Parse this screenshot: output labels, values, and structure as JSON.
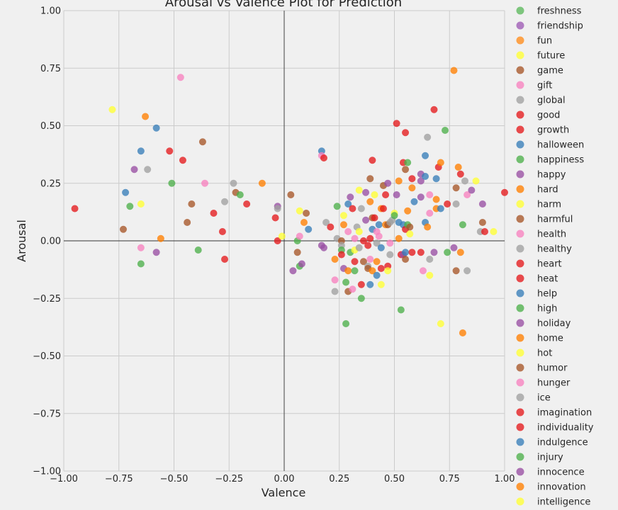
{
  "chart_data": {
    "type": "scatter",
    "title": "Arousal vs Valence Plot for Prediction",
    "xlabel": "Valence",
    "ylabel": "Arousal",
    "xlim": [
      -1.0,
      1.0
    ],
    "ylim": [
      -1.0,
      1.0
    ],
    "xticks": [
      "−1.00",
      "−0.75",
      "−0.50",
      "−0.25",
      "0.00",
      "0.25",
      "0.50",
      "0.75",
      "1.00"
    ],
    "yticks": [
      "−1.00",
      "−0.75",
      "−0.50",
      "−0.25",
      "0.00",
      "0.25",
      "0.50",
      "0.75",
      "1.00"
    ],
    "grid": true,
    "zero_lines": true,
    "legend_position": "outside-right",
    "legend": [
      {
        "name": "freshness",
        "color": "#5cb85c"
      },
      {
        "name": "friendship",
        "color": "#9e5bb5"
      },
      {
        "name": "fun",
        "color": "#ff8c1a"
      },
      {
        "name": "future",
        "color": "#ffff33"
      },
      {
        "name": "game",
        "color": "#a65628"
      },
      {
        "name": "gift",
        "color": "#f781bf"
      },
      {
        "name": "global",
        "color": "#a0a0a0"
      },
      {
        "name": "good",
        "color": "#e41a1c"
      },
      {
        "name": "growth",
        "color": "#e41a1c"
      },
      {
        "name": "halloween",
        "color": "#377eb8"
      },
      {
        "name": "happiness",
        "color": "#4daf4a"
      },
      {
        "name": "happy",
        "color": "#984ea3"
      },
      {
        "name": "hard",
        "color": "#ff7f00"
      },
      {
        "name": "harm",
        "color": "#ffff33"
      },
      {
        "name": "harmful",
        "color": "#a65628"
      },
      {
        "name": "health",
        "color": "#f781bf"
      },
      {
        "name": "healthy",
        "color": "#a0a0a0"
      },
      {
        "name": "heart",
        "color": "#e41a1c"
      },
      {
        "name": "heat",
        "color": "#e41a1c"
      },
      {
        "name": "help",
        "color": "#377eb8"
      },
      {
        "name": "high",
        "color": "#4daf4a"
      },
      {
        "name": "holiday",
        "color": "#984ea3"
      },
      {
        "name": "home",
        "color": "#ff7f00"
      },
      {
        "name": "hot",
        "color": "#ffff33"
      },
      {
        "name": "humor",
        "color": "#a65628"
      },
      {
        "name": "hunger",
        "color": "#f781bf"
      },
      {
        "name": "ice",
        "color": "#a0a0a0"
      },
      {
        "name": "imagination",
        "color": "#e41a1c"
      },
      {
        "name": "individuality",
        "color": "#e41a1c"
      },
      {
        "name": "indulgence",
        "color": "#377eb8"
      },
      {
        "name": "injury",
        "color": "#4daf4a"
      },
      {
        "name": "innocence",
        "color": "#984ea3"
      },
      {
        "name": "innovation",
        "color": "#ff7f00"
      },
      {
        "name": "intelligence",
        "color": "#ffff33"
      }
    ],
    "points": [
      {
        "x": -0.95,
        "y": 0.14,
        "c": "#e41a1c"
      },
      {
        "x": -0.78,
        "y": 0.57,
        "c": "#ffff33"
      },
      {
        "x": -0.73,
        "y": 0.05,
        "c": "#a65628"
      },
      {
        "x": -0.72,
        "y": 0.21,
        "c": "#377eb8"
      },
      {
        "x": -0.7,
        "y": 0.15,
        "c": "#4daf4a"
      },
      {
        "x": -0.68,
        "y": 0.31,
        "c": "#984ea3"
      },
      {
        "x": -0.65,
        "y": 0.39,
        "c": "#377eb8"
      },
      {
        "x": -0.65,
        "y": 0.16,
        "c": "#ffff33"
      },
      {
        "x": -0.65,
        "y": -0.03,
        "c": "#f781bf"
      },
      {
        "x": -0.65,
        "y": -0.1,
        "c": "#4daf4a"
      },
      {
        "x": -0.63,
        "y": 0.54,
        "c": "#ff7f00"
      },
      {
        "x": -0.62,
        "y": 0.31,
        "c": "#a0a0a0"
      },
      {
        "x": -0.58,
        "y": 0.49,
        "c": "#377eb8"
      },
      {
        "x": -0.58,
        "y": -0.05,
        "c": "#984ea3"
      },
      {
        "x": -0.56,
        "y": 0.01,
        "c": "#ff7f00"
      },
      {
        "x": -0.52,
        "y": 0.39,
        "c": "#e41a1c"
      },
      {
        "x": -0.51,
        "y": 0.25,
        "c": "#4daf4a"
      },
      {
        "x": -0.47,
        "y": 0.71,
        "c": "#f781bf"
      },
      {
        "x": -0.46,
        "y": 0.35,
        "c": "#e41a1c"
      },
      {
        "x": -0.44,
        "y": 0.08,
        "c": "#a65628"
      },
      {
        "x": -0.42,
        "y": 0.16,
        "c": "#a65628"
      },
      {
        "x": -0.39,
        "y": -0.04,
        "c": "#4daf4a"
      },
      {
        "x": -0.37,
        "y": 0.43,
        "c": "#a65628"
      },
      {
        "x": -0.36,
        "y": 0.25,
        "c": "#f781bf"
      },
      {
        "x": -0.32,
        "y": 0.12,
        "c": "#e41a1c"
      },
      {
        "x": -0.28,
        "y": 0.04,
        "c": "#e41a1c"
      },
      {
        "x": -0.27,
        "y": 0.17,
        "c": "#a0a0a0"
      },
      {
        "x": -0.27,
        "y": -0.08,
        "c": "#e41a1c"
      },
      {
        "x": -0.23,
        "y": 0.25,
        "c": "#a0a0a0"
      },
      {
        "x": -0.22,
        "y": 0.21,
        "c": "#a65628"
      },
      {
        "x": -0.2,
        "y": 0.2,
        "c": "#4daf4a"
      },
      {
        "x": -0.17,
        "y": 0.16,
        "c": "#e41a1c"
      },
      {
        "x": -0.1,
        "y": 0.25,
        "c": "#ff7f00"
      },
      {
        "x": -0.04,
        "y": 0.1,
        "c": "#e41a1c"
      },
      {
        "x": -0.03,
        "y": 0.0,
        "c": "#e41a1c"
      },
      {
        "x": -0.03,
        "y": 0.15,
        "c": "#984ea3"
      },
      {
        "x": -0.03,
        "y": 0.14,
        "c": "#a0a0a0"
      },
      {
        "x": -0.01,
        "y": 0.02,
        "c": "#ffff33"
      },
      {
        "x": 0.03,
        "y": 0.2,
        "c": "#a65628"
      },
      {
        "x": 0.04,
        "y": -0.13,
        "c": "#984ea3"
      },
      {
        "x": 0.06,
        "y": 0.0,
        "c": "#4daf4a"
      },
      {
        "x": 0.06,
        "y": -0.05,
        "c": "#a65628"
      },
      {
        "x": 0.07,
        "y": 0.13,
        "c": "#ffff33"
      },
      {
        "x": 0.07,
        "y": 0.02,
        "c": "#f781bf"
      },
      {
        "x": 0.07,
        "y": -0.11,
        "c": "#4daf4a"
      },
      {
        "x": 0.08,
        "y": -0.1,
        "c": "#984ea3"
      },
      {
        "x": 0.09,
        "y": 0.08,
        "c": "#ff7f00"
      },
      {
        "x": 0.1,
        "y": 0.12,
        "c": "#a65628"
      },
      {
        "x": 0.11,
        "y": 0.05,
        "c": "#377eb8"
      },
      {
        "x": 0.17,
        "y": 0.39,
        "c": "#377eb8"
      },
      {
        "x": 0.17,
        "y": 0.37,
        "c": "#f781bf"
      },
      {
        "x": 0.18,
        "y": 0.36,
        "c": "#e41a1c"
      },
      {
        "x": 0.17,
        "y": -0.02,
        "c": "#984ea3"
      },
      {
        "x": 0.18,
        "y": -0.03,
        "c": "#984ea3"
      },
      {
        "x": 0.19,
        "y": 0.08,
        "c": "#a0a0a0"
      },
      {
        "x": 0.21,
        "y": 0.06,
        "c": "#e41a1c"
      },
      {
        "x": 0.23,
        "y": -0.22,
        "c": "#a0a0a0"
      },
      {
        "x": 0.23,
        "y": -0.17,
        "c": "#f781bf"
      },
      {
        "x": 0.23,
        "y": -0.08,
        "c": "#ff7f00"
      },
      {
        "x": 0.24,
        "y": 0.15,
        "c": "#4daf4a"
      },
      {
        "x": 0.24,
        "y": 0.01,
        "c": "#a0a0a0"
      },
      {
        "x": 0.26,
        "y": 0.0,
        "c": "#a65628"
      },
      {
        "x": 0.26,
        "y": -0.02,
        "c": "#a0a0a0"
      },
      {
        "x": 0.26,
        "y": -0.04,
        "c": "#4daf4a"
      },
      {
        "x": 0.26,
        "y": -0.06,
        "c": "#e41a1c"
      },
      {
        "x": 0.27,
        "y": -0.12,
        "c": "#984ea3"
      },
      {
        "x": 0.27,
        "y": 0.07,
        "c": "#ff7f00"
      },
      {
        "x": 0.27,
        "y": 0.11,
        "c": "#ffff33"
      },
      {
        "x": 0.28,
        "y": -0.18,
        "c": "#4daf4a"
      },
      {
        "x": 0.28,
        "y": -0.36,
        "c": "#4daf4a"
      },
      {
        "x": 0.29,
        "y": 0.16,
        "c": "#377eb8"
      },
      {
        "x": 0.29,
        "y": 0.04,
        "c": "#f781bf"
      },
      {
        "x": 0.29,
        "y": -0.13,
        "c": "#ff7f00"
      },
      {
        "x": 0.29,
        "y": -0.22,
        "c": "#a65628"
      },
      {
        "x": 0.3,
        "y": 0.19,
        "c": "#984ea3"
      },
      {
        "x": 0.3,
        "y": -0.05,
        "c": "#4daf4a"
      },
      {
        "x": 0.31,
        "y": 0.14,
        "c": "#e41a1c"
      },
      {
        "x": 0.31,
        "y": -0.21,
        "c": "#f781bf"
      },
      {
        "x": 0.32,
        "y": -0.04,
        "c": "#ffff33"
      },
      {
        "x": 0.32,
        "y": -0.09,
        "c": "#e41a1c"
      },
      {
        "x": 0.32,
        "y": -0.13,
        "c": "#4daf4a"
      },
      {
        "x": 0.32,
        "y": 0.01,
        "c": "#f781bf"
      },
      {
        "x": 0.33,
        "y": 0.06,
        "c": "#a0a0a0"
      },
      {
        "x": 0.34,
        "y": -0.03,
        "c": "#a0a0a0"
      },
      {
        "x": 0.34,
        "y": 0.22,
        "c": "#ffff33"
      },
      {
        "x": 0.34,
        "y": 0.04,
        "c": "#ffff33"
      },
      {
        "x": 0.35,
        "y": 0.14,
        "c": "#a0a0a0"
      },
      {
        "x": 0.35,
        "y": -0.19,
        "c": "#e41a1c"
      },
      {
        "x": 0.35,
        "y": -0.25,
        "c": "#4daf4a"
      },
      {
        "x": 0.36,
        "y": 0.0,
        "c": "#e41a1c"
      },
      {
        "x": 0.36,
        "y": -0.09,
        "c": "#a65628"
      },
      {
        "x": 0.37,
        "y": 0.21,
        "c": "#984ea3"
      },
      {
        "x": 0.37,
        "y": 0.09,
        "c": "#984ea3"
      },
      {
        "x": 0.38,
        "y": -0.02,
        "c": "#e41a1c"
      },
      {
        "x": 0.38,
        "y": -0.11,
        "c": "#a0a0a0"
      },
      {
        "x": 0.38,
        "y": -0.12,
        "c": "#a65628"
      },
      {
        "x": 0.39,
        "y": 0.27,
        "c": "#a65628"
      },
      {
        "x": 0.39,
        "y": 0.17,
        "c": "#ff7f00"
      },
      {
        "x": 0.39,
        "y": 0.01,
        "c": "#e41a1c"
      },
      {
        "x": 0.39,
        "y": -0.08,
        "c": "#f781bf"
      },
      {
        "x": 0.39,
        "y": -0.19,
        "c": "#377eb8"
      },
      {
        "x": 0.4,
        "y": 0.35,
        "c": "#e41a1c"
      },
      {
        "x": 0.4,
        "y": 0.1,
        "c": "#a65628"
      },
      {
        "x": 0.4,
        "y": 0.05,
        "c": "#377eb8"
      },
      {
        "x": 0.4,
        "y": -0.13,
        "c": "#ff7f00"
      },
      {
        "x": 0.41,
        "y": 0.2,
        "c": "#ffff33"
      },
      {
        "x": 0.41,
        "y": 0.1,
        "c": "#e41a1c"
      },
      {
        "x": 0.42,
        "y": 0.04,
        "c": "#f781bf"
      },
      {
        "x": 0.42,
        "y": -0.01,
        "c": "#a0a0a0"
      },
      {
        "x": 0.42,
        "y": -0.09,
        "c": "#ff7f00"
      },
      {
        "x": 0.42,
        "y": -0.15,
        "c": "#377eb8"
      },
      {
        "x": 0.43,
        "y": 0.07,
        "c": "#377eb8"
      },
      {
        "x": 0.43,
        "y": 0.02,
        "c": "#f781bf"
      },
      {
        "x": 0.44,
        "y": 0.14,
        "c": "#ff7f00"
      },
      {
        "x": 0.44,
        "y": -0.03,
        "c": "#377eb8"
      },
      {
        "x": 0.44,
        "y": -0.12,
        "c": "#e41a1c"
      },
      {
        "x": 0.44,
        "y": -0.19,
        "c": "#ffff33"
      },
      {
        "x": 0.45,
        "y": 0.24,
        "c": "#a65628"
      },
      {
        "x": 0.45,
        "y": 0.14,
        "c": "#e41a1c"
      },
      {
        "x": 0.46,
        "y": 0.2,
        "c": "#e41a1c"
      },
      {
        "x": 0.46,
        "y": 0.07,
        "c": "#ff7f00"
      },
      {
        "x": 0.47,
        "y": 0.25,
        "c": "#984ea3"
      },
      {
        "x": 0.47,
        "y": 0.07,
        "c": "#a65628"
      },
      {
        "x": 0.47,
        "y": -0.11,
        "c": "#e41a1c"
      },
      {
        "x": 0.47,
        "y": -0.13,
        "c": "#ffff33"
      },
      {
        "x": 0.48,
        "y": 0.08,
        "c": "#a0a0a0"
      },
      {
        "x": 0.48,
        "y": -0.01,
        "c": "#f781bf"
      },
      {
        "x": 0.48,
        "y": -0.06,
        "c": "#a0a0a0"
      },
      {
        "x": 0.49,
        "y": 0.09,
        "c": "#a0a0a0"
      },
      {
        "x": 0.5,
        "y": 0.12,
        "c": "#ffff33"
      },
      {
        "x": 0.5,
        "y": 0.11,
        "c": "#4daf4a"
      },
      {
        "x": 0.51,
        "y": 0.51,
        "c": "#e41a1c"
      },
      {
        "x": 0.51,
        "y": 0.2,
        "c": "#984ea3"
      },
      {
        "x": 0.52,
        "y": 0.26,
        "c": "#ff7f00"
      },
      {
        "x": 0.52,
        "y": 0.08,
        "c": "#377eb8"
      },
      {
        "x": 0.52,
        "y": 0.01,
        "c": "#ff7f00"
      },
      {
        "x": 0.53,
        "y": -0.06,
        "c": "#e41a1c"
      },
      {
        "x": 0.53,
        "y": -0.3,
        "c": "#4daf4a"
      },
      {
        "x": 0.54,
        "y": 0.34,
        "c": "#e41a1c"
      },
      {
        "x": 0.54,
        "y": 0.07,
        "c": "#377eb8"
      },
      {
        "x": 0.54,
        "y": -0.06,
        "c": "#984ea3"
      },
      {
        "x": 0.55,
        "y": 0.47,
        "c": "#e41a1c"
      },
      {
        "x": 0.55,
        "y": 0.31,
        "c": "#a65628"
      },
      {
        "x": 0.55,
        "y": 0.05,
        "c": "#e41a1c"
      },
      {
        "x": 0.55,
        "y": -0.05,
        "c": "#377eb8"
      },
      {
        "x": 0.55,
        "y": -0.08,
        "c": "#a65628"
      },
      {
        "x": 0.56,
        "y": 0.34,
        "c": "#4daf4a"
      },
      {
        "x": 0.56,
        "y": 0.13,
        "c": "#ff7f00"
      },
      {
        "x": 0.56,
        "y": 0.07,
        "c": "#4daf4a"
      },
      {
        "x": 0.57,
        "y": 0.06,
        "c": "#a65628"
      },
      {
        "x": 0.57,
        "y": 0.03,
        "c": "#ffff33"
      },
      {
        "x": 0.58,
        "y": 0.23,
        "c": "#ff7f00"
      },
      {
        "x": 0.58,
        "y": 0.27,
        "c": "#e41a1c"
      },
      {
        "x": 0.58,
        "y": -0.05,
        "c": "#e41a1c"
      },
      {
        "x": 0.59,
        "y": 0.17,
        "c": "#377eb8"
      },
      {
        "x": 0.62,
        "y": 0.29,
        "c": "#984ea3"
      },
      {
        "x": 0.62,
        "y": 0.26,
        "c": "#984ea3"
      },
      {
        "x": 0.62,
        "y": 0.19,
        "c": "#984ea3"
      },
      {
        "x": 0.62,
        "y": -0.05,
        "c": "#e41a1c"
      },
      {
        "x": 0.63,
        "y": -0.13,
        "c": "#f781bf"
      },
      {
        "x": 0.64,
        "y": 0.37,
        "c": "#377eb8"
      },
      {
        "x": 0.64,
        "y": 0.28,
        "c": "#377eb8"
      },
      {
        "x": 0.64,
        "y": 0.08,
        "c": "#377eb8"
      },
      {
        "x": 0.65,
        "y": 0.45,
        "c": "#a0a0a0"
      },
      {
        "x": 0.65,
        "y": 0.06,
        "c": "#ff7f00"
      },
      {
        "x": 0.66,
        "y": 0.2,
        "c": "#f781bf"
      },
      {
        "x": 0.66,
        "y": 0.12,
        "c": "#f781bf"
      },
      {
        "x": 0.66,
        "y": -0.08,
        "c": "#a0a0a0"
      },
      {
        "x": 0.66,
        "y": -0.15,
        "c": "#ffff33"
      },
      {
        "x": 0.68,
        "y": 0.57,
        "c": "#e41a1c"
      },
      {
        "x": 0.68,
        "y": -0.05,
        "c": "#984ea3"
      },
      {
        "x": 0.69,
        "y": 0.27,
        "c": "#377eb8"
      },
      {
        "x": 0.69,
        "y": 0.18,
        "c": "#ff7f00"
      },
      {
        "x": 0.69,
        "y": 0.14,
        "c": "#ff7f00"
      },
      {
        "x": 0.7,
        "y": 0.32,
        "c": "#e41a1c"
      },
      {
        "x": 0.71,
        "y": 0.34,
        "c": "#ff7f00"
      },
      {
        "x": 0.71,
        "y": 0.14,
        "c": "#377eb8"
      },
      {
        "x": 0.71,
        "y": -0.36,
        "c": "#ffff33"
      },
      {
        "x": 0.73,
        "y": 0.48,
        "c": "#4daf4a"
      },
      {
        "x": 0.74,
        "y": 0.16,
        "c": "#e41a1c"
      },
      {
        "x": 0.74,
        "y": -0.05,
        "c": "#4daf4a"
      },
      {
        "x": 0.77,
        "y": 0.74,
        "c": "#ff7f00"
      },
      {
        "x": 0.77,
        "y": -0.03,
        "c": "#984ea3"
      },
      {
        "x": 0.78,
        "y": 0.23,
        "c": "#a65628"
      },
      {
        "x": 0.78,
        "y": 0.16,
        "c": "#a0a0a0"
      },
      {
        "x": 0.78,
        "y": -0.13,
        "c": "#a65628"
      },
      {
        "x": 0.79,
        "y": 0.32,
        "c": "#ff7f00"
      },
      {
        "x": 0.8,
        "y": 0.29,
        "c": "#e41a1c"
      },
      {
        "x": 0.8,
        "y": -0.05,
        "c": "#ff7f00"
      },
      {
        "x": 0.81,
        "y": 0.07,
        "c": "#4daf4a"
      },
      {
        "x": 0.81,
        "y": -0.4,
        "c": "#ff7f00"
      },
      {
        "x": 0.82,
        "y": 0.26,
        "c": "#a0a0a0"
      },
      {
        "x": 0.83,
        "y": 0.2,
        "c": "#f781bf"
      },
      {
        "x": 0.83,
        "y": -0.13,
        "c": "#a0a0a0"
      },
      {
        "x": 0.85,
        "y": 0.22,
        "c": "#984ea3"
      },
      {
        "x": 0.87,
        "y": 0.26,
        "c": "#ffff33"
      },
      {
        "x": 0.89,
        "y": 0.04,
        "c": "#a0a0a0"
      },
      {
        "x": 0.9,
        "y": 0.08,
        "c": "#a65628"
      },
      {
        "x": 0.9,
        "y": 0.16,
        "c": "#984ea3"
      },
      {
        "x": 0.91,
        "y": 0.04,
        "c": "#e41a1c"
      },
      {
        "x": 0.95,
        "y": 0.04,
        "c": "#ffff33"
      },
      {
        "x": 1.0,
        "y": 0.21,
        "c": "#e41a1c"
      }
    ]
  }
}
